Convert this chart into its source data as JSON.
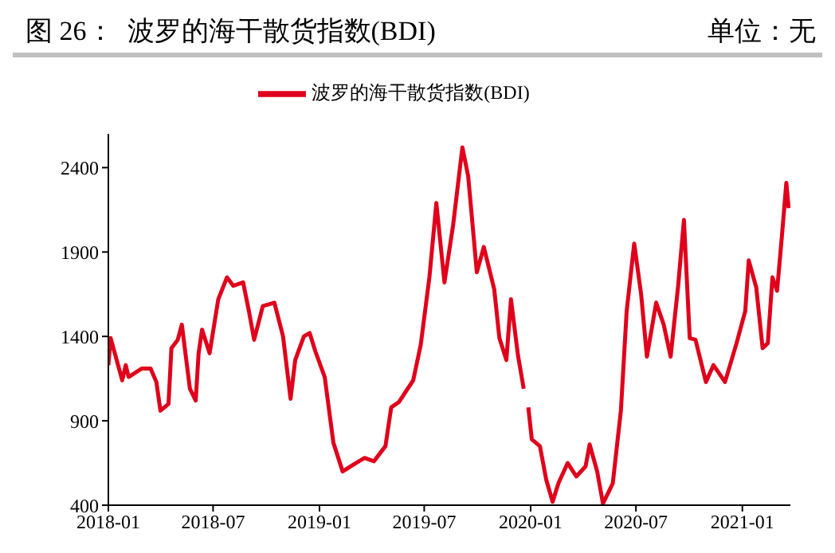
{
  "chart_data": {
    "type": "line",
    "title": "图 26：  波罗的海干散货指数(BDI)",
    "annotations": [
      "单位：无"
    ],
    "x": [
      "2018-01-01",
      "2018-01-05",
      "2018-01-25",
      "2018-01-31",
      "2018-02-05",
      "2018-02-28",
      "2018-03-15",
      "2018-03-25",
      "2018-04-01",
      "2018-04-15",
      "2018-04-20",
      "2018-05-01",
      "2018-05-08",
      "2018-05-22",
      "2018-06-01",
      "2018-06-06",
      "2018-06-12",
      "2018-06-25",
      "2018-07-10",
      "2018-07-25",
      "2018-08-05",
      "2018-08-22",
      "2018-09-01",
      "2018-09-10",
      "2018-09-25",
      "2018-10-15",
      "2018-10-30",
      "2018-11-12",
      "2018-11-20",
      "2018-12-05",
      "2018-12-15",
      "2018-12-25",
      "2019-01-10",
      "2019-01-25",
      "2019-02-10",
      "2019-03-05",
      "2019-03-20",
      "2019-04-05",
      "2019-04-25",
      "2019-05-05",
      "2019-05-18",
      "2019-06-12",
      "2019-06-25",
      "2019-07-10",
      "2019-07-22",
      "2019-08-05",
      "2019-08-20",
      "2019-09-05",
      "2019-09-15",
      "2019-09-30",
      "2019-10-12",
      "2019-10-30",
      "2019-11-08",
      "2019-11-20",
      "2019-11-28",
      "2019-12-10",
      "2019-12-20",
      "2019-12-24",
      "2019-12-28",
      "2020-01-03",
      "2020-01-17",
      "2020-01-28",
      "2020-02-08",
      "2020-02-18",
      "2020-03-05",
      "2020-03-20",
      "2020-04-05",
      "2020-04-12",
      "2020-04-25",
      "2020-05-05",
      "2020-05-15",
      "2020-05-22",
      "2020-06-05",
      "2020-06-15",
      "2020-06-28",
      "2020-07-10",
      "2020-07-20",
      "2020-08-05",
      "2020-08-18",
      "2020-08-30",
      "2020-09-12",
      "2020-09-22",
      "2020-10-02",
      "2020-10-12",
      "2020-10-30",
      "2020-11-12",
      "2020-12-02",
      "2020-12-22",
      "2021-01-06",
      "2021-01-12",
      "2021-01-25",
      "2021-02-05",
      "2021-02-14",
      "2021-02-22",
      "2021-03-02",
      "2021-03-10",
      "2021-03-18",
      "2021-03-22"
    ],
    "series": [
      {
        "name": "波罗的海干散货指数(BDI)",
        "color": "#e0001b",
        "values": [
          1230,
          1390,
          1140,
          1230,
          1160,
          1210,
          1210,
          1130,
          960,
          1000,
          1330,
          1380,
          1470,
          1090,
          1020,
          1300,
          1440,
          1300,
          1620,
          1750,
          1700,
          1720,
          1550,
          1380,
          1580,
          1600,
          1400,
          1030,
          1260,
          1400,
          1420,
          1310,
          1160,
          770,
          600,
          650,
          680,
          660,
          750,
          980,
          1010,
          1140,
          1350,
          1750,
          2190,
          1720,
          2060,
          2520,
          2350,
          1780,
          1930,
          1680,
          1390,
          1260,
          1620,
          1290,
          1090,
          null,
          980,
          790,
          750,
          550,
          420,
          530,
          650,
          570,
          630,
          760,
          600,
          410,
          480,
          530,
          960,
          1550,
          1950,
          1650,
          1280,
          1600,
          1470,
          1280,
          1700,
          2090,
          1390,
          1380,
          1130,
          1230,
          1130,
          1360,
          1550,
          1850,
          1690,
          1330,
          1360,
          1750,
          1670,
          1980,
          2310,
          2160
        ]
      }
    ],
    "xlim": [
      "2018-01-01",
      "2021-03-25"
    ],
    "xticks": [
      "2018-01",
      "2018-07",
      "2019-01",
      "2019-07",
      "2020-01",
      "2020-07",
      "2021-01"
    ],
    "ylim": [
      400,
      2600
    ],
    "yticks": [
      400,
      900,
      1400,
      1900,
      2400
    ],
    "legend": "top",
    "marker": "none",
    "line_style": "solid"
  }
}
